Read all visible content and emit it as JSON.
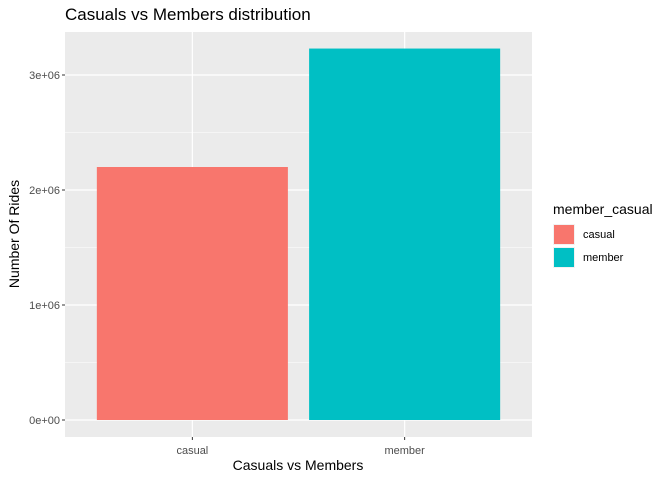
{
  "chart_data": {
    "type": "bar",
    "title": "Casuals vs Members distribution",
    "xlabel": "Casuals vs Members",
    "ylabel": "Number Of Rides",
    "categories": [
      "casual",
      "member"
    ],
    "values": [
      2200000,
      3230000
    ],
    "colors": [
      "#F8766D",
      "#00BFC4"
    ],
    "ylim": [
      0,
      3300000
    ],
    "yticks": [
      0,
      1000000,
      2000000,
      3000000
    ],
    "ytick_labels": [
      "0e+00",
      "1e+06",
      "2e+06",
      "3e+06"
    ],
    "grid": true,
    "legend": {
      "title": "member_casual",
      "placement": "right",
      "entries": [
        "casual",
        "member"
      ]
    }
  }
}
